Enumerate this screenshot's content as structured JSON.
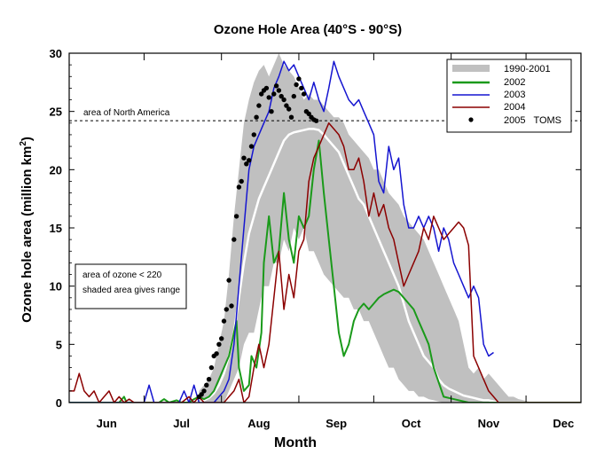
{
  "chart_data": {
    "type": "line",
    "title": "Ozone Hole Area (40°S - 90°S)",
    "xlabel": "Month",
    "ylabel_main": "Ozone hole area (million km",
    "ylabel_sup": "2",
    "ylabel_end": ")",
    "x_months": [
      "Jun",
      "Jul",
      "Aug",
      "Sep",
      "Oct",
      "Nov",
      "Dec"
    ],
    "x_range_days": [
      0,
      205
    ],
    "ylim": [
      0,
      30
    ],
    "yticks": [
      0,
      5,
      10,
      15,
      20,
      25,
      30
    ],
    "reference_line": {
      "label": "area of North America",
      "y": 24.2
    },
    "note_lines": [
      "area of ozone < 220",
      "shaded area gives range"
    ],
    "legend": [
      {
        "label": "1990-2001",
        "kind": "band"
      },
      {
        "label": "2002",
        "kind": "line"
      },
      {
        "label": "2003",
        "kind": "line"
      },
      {
        "label": "2004",
        "kind": "line"
      },
      {
        "label": "2005   TOMS",
        "kind": "marker"
      }
    ],
    "colors": {
      "band": "#c0c0c0",
      "mean": "#ffffff",
      "s2002": "#1a9a1a",
      "s2003": "#1515d0",
      "s2004": "#8b0000",
      "s2005": "#000000"
    },
    "series": [
      {
        "name": "1990-2001",
        "type": "band",
        "x": [
          52,
          54,
          56,
          58,
          60,
          62,
          64,
          66,
          68,
          70,
          72,
          74,
          76,
          78,
          80,
          82,
          84,
          86,
          88,
          90,
          92,
          94,
          96,
          98,
          100,
          102,
          104,
          106,
          108,
          110,
          112,
          114,
          116,
          118,
          120,
          122,
          124,
          126,
          128,
          130,
          132,
          134,
          136,
          138,
          140,
          142,
          144,
          146,
          148,
          150,
          152,
          154,
          156,
          158,
          160,
          162,
          164,
          166,
          168,
          170,
          172,
          174,
          176,
          178,
          180,
          182,
          184,
          186,
          188,
          190,
          192,
          194,
          196,
          198,
          200
        ],
        "upper": [
          1,
          1.5,
          2,
          3,
          5,
          7,
          11,
          16,
          20,
          24,
          26,
          27.5,
          28.5,
          29,
          28,
          29,
          30,
          29,
          28.5,
          28,
          27,
          26,
          26.5,
          26,
          26,
          25.5,
          25,
          24.5,
          24.5,
          24,
          23,
          22.5,
          22,
          21.5,
          21,
          20,
          20,
          19,
          18,
          17.5,
          17,
          16,
          15.5,
          15,
          14.5,
          14,
          13,
          12,
          11,
          10,
          9,
          8,
          7,
          5,
          3,
          2.5,
          3,
          2,
          2.5,
          2,
          1.5,
          1,
          0.5,
          0.5,
          0.3,
          0.2,
          0.1,
          0,
          0,
          0,
          0,
          0,
          0,
          0,
          0
        ],
        "lower": [
          0,
          0,
          0,
          0,
          0,
          0,
          1,
          2,
          3,
          5,
          6,
          6,
          8,
          10,
          10,
          12,
          12,
          14,
          13,
          15,
          14,
          15,
          13,
          13,
          12,
          11,
          10.5,
          10,
          9.5,
          9,
          9,
          8,
          8,
          7,
          7,
          6,
          5,
          4,
          3,
          3,
          2,
          1.5,
          1,
          1,
          0.5,
          0.5,
          0.3,
          0.2,
          0.1,
          0,
          0,
          0,
          0,
          0,
          0,
          0,
          0,
          0,
          0,
          0,
          0,
          0,
          0,
          0,
          0,
          0,
          0,
          0,
          0,
          0,
          0,
          0,
          0,
          0,
          0
        ],
        "mean": [
          0,
          0.2,
          0.4,
          0.8,
          1.5,
          2.5,
          4,
          6,
          9,
          12,
          14.5,
          16,
          17.5,
          18.5,
          19.5,
          20.5,
          21.5,
          22.5,
          23,
          23.2,
          23.3,
          23.4,
          23.5,
          23.5,
          23.4,
          23,
          22.5,
          22,
          21.5,
          20.5,
          19.5,
          18.5,
          17.5,
          17,
          16,
          15,
          14,
          13,
          12,
          11,
          10,
          8.5,
          7,
          6,
          5,
          4,
          3.5,
          3,
          2,
          1.5,
          1.2,
          1,
          0.8,
          0.6,
          0.5,
          0.4,
          0.3,
          0.2,
          0.2,
          0.1,
          0,
          0,
          0,
          0,
          0,
          0,
          0,
          0,
          0,
          0,
          0,
          0,
          0,
          0,
          0
        ]
      },
      {
        "name": "2002",
        "x": [
          0,
          20,
          22,
          23,
          25,
          36,
          38,
          40,
          43,
          45,
          48,
          50,
          52,
          54,
          56,
          58,
          60,
          62,
          64,
          65,
          67,
          68,
          70,
          72,
          73,
          75,
          77,
          78,
          80,
          82,
          84,
          86,
          88,
          90,
          92,
          94,
          96,
          98,
          100,
          102,
          104,
          106,
          108,
          110,
          112,
          114,
          116,
          118,
          120,
          122,
          124,
          126,
          128,
          130,
          132,
          134,
          136,
          138,
          140,
          142,
          144,
          146,
          150,
          160,
          175,
          205
        ],
        "y": [
          0,
          0,
          0.5,
          0,
          0,
          0,
          0.3,
          0,
          0.2,
          0,
          0,
          0.3,
          0.5,
          0.3,
          0.5,
          1,
          2,
          3,
          4,
          5,
          7,
          3,
          1,
          1.5,
          4,
          3,
          6,
          12,
          16,
          12,
          13,
          18,
          14,
          12,
          16,
          15,
          16,
          20,
          22.5,
          18,
          14,
          10,
          6,
          4,
          5,
          7,
          8,
          8.5,
          8,
          8.5,
          9,
          9.3,
          9.5,
          9.7,
          9.5,
          9,
          8.5,
          8,
          7,
          6,
          5,
          3,
          0.5,
          0,
          0,
          0
        ]
      },
      {
        "name": "2003",
        "x": [
          0,
          30,
          32,
          34,
          36,
          44,
          46,
          48,
          50,
          52,
          54,
          56,
          58,
          60,
          62,
          64,
          66,
          68,
          70,
          72,
          74,
          76,
          78,
          80,
          82,
          84,
          86,
          88,
          90,
          92,
          94,
          96,
          98,
          100,
          102,
          104,
          106,
          108,
          110,
          112,
          114,
          116,
          118,
          120,
          122,
          124,
          126,
          128,
          130,
          132,
          134,
          136,
          138,
          140,
          142,
          144,
          146,
          148,
          150,
          152,
          154,
          156,
          158,
          160,
          162,
          164,
          166,
          168,
          170
        ],
        "y": [
          0,
          0,
          1.5,
          0,
          0,
          0,
          1,
          0,
          1.5,
          0,
          0,
          0,
          0,
          0.5,
          1,
          2,
          5,
          10,
          15,
          20,
          22,
          23,
          24,
          25,
          27,
          28,
          29.3,
          28.5,
          29,
          28,
          27,
          26,
          27.5,
          26,
          25,
          27,
          29.3,
          28,
          27,
          26,
          25.5,
          26,
          25,
          24,
          23,
          19,
          18,
          22,
          20,
          21,
          17,
          15,
          15,
          16,
          15,
          16,
          15,
          13,
          15,
          14,
          12,
          11,
          10,
          9,
          10,
          9,
          5,
          4,
          4.3
        ]
      },
      {
        "name": "2004",
        "x": [
          0,
          2,
          4,
          6,
          8,
          10,
          12,
          14,
          16,
          18,
          20,
          22,
          24,
          26,
          28,
          30,
          40,
          45,
          48,
          50,
          52,
          54,
          56,
          58,
          60,
          62,
          64,
          66,
          68,
          70,
          72,
          74,
          76,
          78,
          80,
          82,
          84,
          86,
          88,
          90,
          92,
          94,
          96,
          98,
          100,
          102,
          104,
          106,
          108,
          110,
          112,
          114,
          116,
          118,
          120,
          122,
          124,
          126,
          128,
          130,
          132,
          134,
          136,
          138,
          140,
          142,
          144,
          146,
          148,
          150,
          152,
          154,
          156,
          158,
          160,
          162,
          164,
          166,
          168,
          170,
          172,
          174,
          176,
          178,
          180,
          205
        ],
        "y": [
          1,
          1,
          2.5,
          1,
          0.5,
          1,
          0,
          0.5,
          1,
          0,
          0.5,
          0,
          0.3,
          0,
          0,
          0,
          0,
          0,
          0.5,
          0,
          0.5,
          0,
          0,
          0,
          0,
          0,
          0.5,
          1,
          2,
          0,
          0.5,
          3,
          5,
          3,
          5,
          9,
          13,
          8,
          11,
          9,
          13,
          14,
          19,
          21,
          22,
          23,
          24,
          23.5,
          23,
          22,
          20,
          20,
          21,
          19,
          16,
          18,
          16,
          17,
          15,
          14,
          12,
          10,
          11,
          12,
          13,
          15,
          14,
          16,
          15,
          14,
          14.5,
          15,
          15.5,
          15,
          13.5,
          4,
          3,
          2,
          1,
          0.5,
          0,
          0,
          0,
          0,
          0,
          0
        ]
      },
      {
        "name": "2005   TOMS",
        "type": "scatter",
        "x": [
          52,
          53,
          54,
          55,
          56,
          57,
          58,
          59,
          60,
          61,
          62,
          63,
          64,
          65,
          66,
          67,
          68,
          69,
          70,
          71,
          72,
          73,
          74,
          75,
          76,
          77,
          78,
          79,
          80,
          81,
          82,
          83,
          84,
          85,
          86,
          87,
          88,
          89,
          90,
          91,
          92,
          93,
          94,
          95,
          96,
          97,
          98,
          99
        ],
        "y": [
          0.5,
          0.7,
          1.0,
          1.5,
          2.0,
          3.0,
          4.0,
          4.2,
          5.0,
          5.5,
          7.0,
          8.0,
          10.5,
          8.3,
          14.0,
          16.0,
          18.5,
          19.0,
          21.0,
          20.5,
          20.8,
          22.0,
          23.0,
          24.5,
          25.5,
          26.5,
          26.8,
          27.0,
          26.2,
          25.0,
          26.5,
          27.2,
          26.8,
          26.3,
          26.0,
          25.5,
          25.2,
          24.5,
          26.3,
          27.3,
          27.8,
          27.0,
          26.5,
          25.0,
          24.8,
          24.5,
          24.3,
          24.2
        ]
      }
    ]
  }
}
